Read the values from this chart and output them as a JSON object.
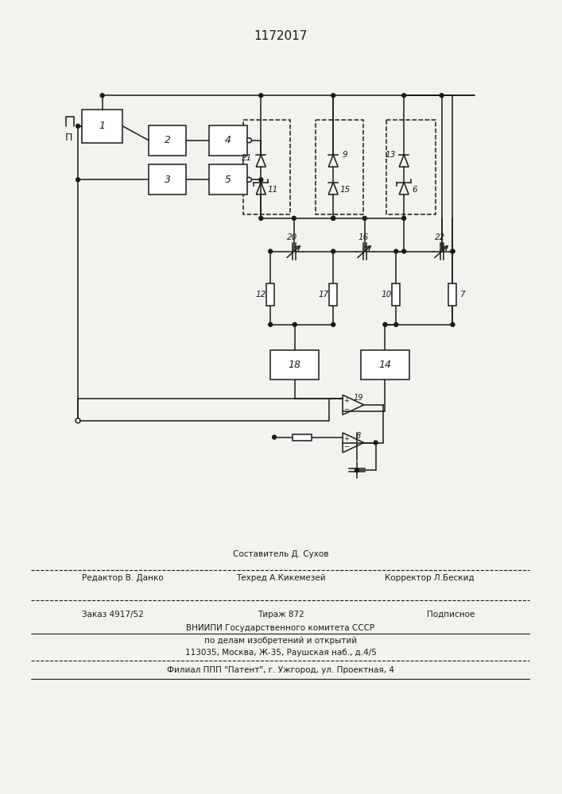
{
  "title": "1172017",
  "bg_color": "#f2f2ee",
  "line_color": "#1a1a1a",
  "fig_width": 7.07,
  "fig_height": 10.0,
  "footer": {
    "line1": "Составитель Д. Сухов",
    "line2_left": "Редактор В. Данко",
    "line2_mid": "Техред А.Кикемезей",
    "line2_right": "Корректор Л.Бескид",
    "line3_left": "Заказ 4917/52",
    "line3_mid": "Тираж 872",
    "line3_right": "Подписное",
    "line4": "ВНИИПИ Государственного комитета СССР",
    "line5": "по делам изобретений и открытий",
    "line6": "113035, Москва, Ж-35, Раушская наб., д.4/5",
    "line7": "Филиал ППП \"Патент\", г. Ужгород, ул. Проектная, 4"
  }
}
